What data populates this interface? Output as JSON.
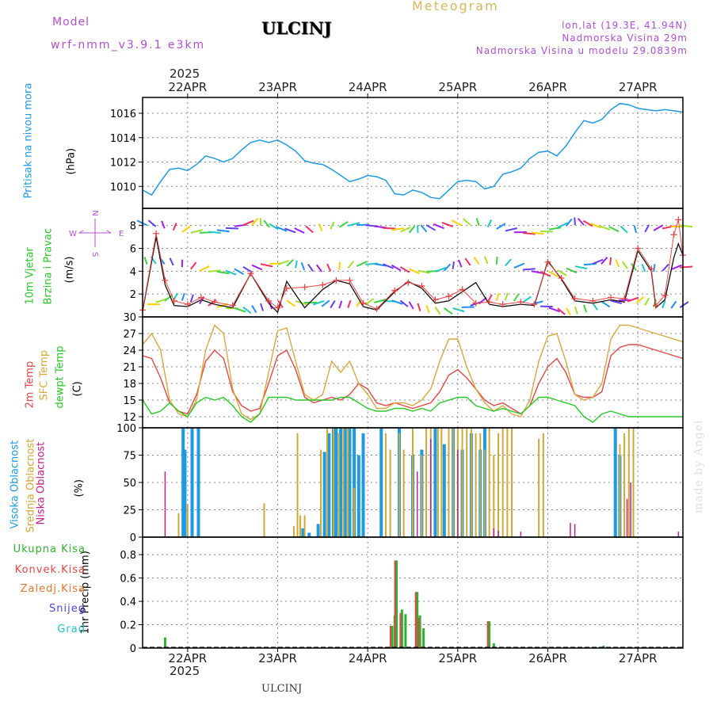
{
  "header": {
    "title": "ULCINJ",
    "subtitle": "Meteogram",
    "model_label": "Model",
    "model_name": "wrf-nmm_v3.9.1  e3km",
    "lonlat": "lon,lat (19.3E, 41.94N)",
    "altitude": "Nadmorska Visina 29m",
    "model_altitude": "Nadmorska Visina u modelu 29.0839m",
    "credit": "made by Angel",
    "footer_station": "ULCINJ",
    "year": "2025"
  },
  "colors": {
    "pressure": "#1e9be0",
    "temp2m": "#e04848",
    "sfc": "#d8a840",
    "dewpt": "#28c828",
    "high_cloud": "#1e9be0",
    "mid_cloud": "#d0a838",
    "low_cloud": "#c0208c",
    "total": "#30b030",
    "convective": "#e04848",
    "frozen": "#e07830",
    "snow": "#4848e0",
    "hail": "#20c0c0",
    "title": "#c8a848",
    "model": "#b050d0"
  },
  "chart_data": [
    {
      "type": "line",
      "name": "Pritisak na nivou mora",
      "ylabel_left": "Pritisak na nivou mora",
      "ylabel_unit": "(hPa)",
      "x_unit": "day index (0 = 22APR 00h)",
      "xlim": [
        -0.5,
        5.5
      ],
      "ylim": [
        1008.2,
        1017.3
      ],
      "yticks": [
        1010,
        1012,
        1014,
        1016
      ],
      "xtick_labels": [
        "22APR",
        "23APR",
        "24APR",
        "25APR",
        "26APR",
        "27APR"
      ],
      "x": [
        -0.5,
        -0.4,
        -0.3,
        -0.2,
        -0.1,
        0,
        0.1,
        0.2,
        0.3,
        0.4,
        0.5,
        0.6,
        0.7,
        0.8,
        0.9,
        1.0,
        1.1,
        1.2,
        1.3,
        1.4,
        1.5,
        1.6,
        1.7,
        1.8,
        1.9,
        2.0,
        2.1,
        2.2,
        2.3,
        2.4,
        2.5,
        2.6,
        2.7,
        2.8,
        2.9,
        3.0,
        3.1,
        3.2,
        3.3,
        3.4,
        3.5,
        3.6,
        3.7,
        3.8,
        3.9,
        4.0,
        4.1,
        4.2,
        4.3,
        4.4,
        4.5,
        4.6,
        4.7,
        4.8,
        4.9,
        5.0,
        5.1,
        5.2,
        5.3,
        5.4,
        5.5
      ],
      "values": [
        1009.7,
        1009.3,
        1010.4,
        1011.4,
        1011.5,
        1011.3,
        1011.8,
        1012.5,
        1012.3,
        1012.0,
        1012.3,
        1013.0,
        1013.6,
        1013.8,
        1013.6,
        1013.8,
        1013.4,
        1012.9,
        1012.1,
        1011.9,
        1011.8,
        1011.4,
        1010.9,
        1010.4,
        1010.6,
        1010.9,
        1010.8,
        1010.5,
        1009.4,
        1009.3,
        1009.7,
        1009.5,
        1009.1,
        1009.0,
        1009.7,
        1010.4,
        1010.5,
        1010.4,
        1009.8,
        1010.0,
        1011.0,
        1011.2,
        1011.5,
        1012.3,
        1012.8,
        1012.9,
        1012.5,
        1013.3,
        1014.4,
        1015.4,
        1015.2,
        1015.5,
        1016.3,
        1016.8,
        1016.7,
        1016.4,
        1016.3,
        1016.2,
        1016.3,
        1016.2,
        1016.1
      ]
    },
    {
      "type": "line",
      "name": "10m Vjetar Brzina i Pravac",
      "ylabel_left": "10m Vjetar",
      "ylabel_left2": "Brzina i Pravac",
      "ylabel_unit": "(m/s)",
      "compass": {
        "n": "N",
        "s": "S",
        "e": "E",
        "w": "W"
      },
      "xlim": [
        -0.5,
        5.5
      ],
      "ylim": [
        0,
        9.5
      ],
      "yticks": [
        2,
        4,
        6,
        8
      ],
      "ytick_labels": [
        "2",
        "4",
        "6",
        "8"
      ],
      "series": [
        {
          "name": "wind_speed",
          "values": [
            0.5,
            7.0,
            2.8,
            1.0,
            0.9,
            1.5,
            1.1,
            0.8,
            3.8,
            1.2,
            0.4,
            3.1,
            0.8,
            2.4,
            3.2,
            2.9,
            0.9,
            0.6,
            2.2,
            3.1,
            2.5,
            1.2,
            1.4,
            2.2,
            3.0,
            1.1,
            0.9,
            1.1,
            1.0,
            4.9,
            3.3,
            1.4,
            1.2,
            1.5,
            1.3,
            5.8,
            4.0,
            0.8,
            1.5,
            5.2,
            6.4,
            5.4
          ]
        },
        {
          "name": "wind_gust",
          "values": [
            0.6,
            7.3,
            3.2,
            1.4,
            1.1,
            1.7,
            1.3,
            1.0,
            3.8,
            1.4,
            0.8,
            2.5,
            2.6,
            2.8,
            3.2,
            3.2,
            1.2,
            0.7,
            2.3,
            3.0,
            2.7,
            1.5,
            1.8,
            2.4,
            1.2,
            1.3,
            1.1,
            1.3,
            1.1,
            4.8,
            3.4,
            1.6,
            1.4,
            1.7,
            1.6,
            6.0,
            4.2,
            1.0,
            1.9,
            7.2,
            8.5,
            5.4
          ]
        }
      ],
      "x": [
        -0.5,
        -0.35,
        -0.25,
        -0.15,
        0.0,
        0.15,
        0.3,
        0.5,
        0.7,
        0.9,
        1.0,
        1.1,
        1.3,
        1.5,
        1.65,
        1.8,
        1.95,
        2.1,
        2.3,
        2.45,
        2.6,
        2.75,
        2.9,
        3.05,
        3.2,
        3.35,
        3.5,
        3.7,
        3.85,
        4.0,
        4.15,
        4.3,
        4.5,
        4.7,
        4.85,
        5.0,
        5.15,
        5.2,
        5.3,
        5.4,
        5.45,
        5.5
      ]
    },
    {
      "type": "line",
      "name": "Temperature",
      "ylabel_left": "2m Temp",
      "ylabel_left2": "SFC Temp",
      "ylabel_left3": "dewpt Temp",
      "ylabel_unit": "(C)",
      "xlim": [
        -0.5,
        5.5
      ],
      "ylim": [
        10,
        30
      ],
      "yticks": [
        12,
        15,
        18,
        21,
        24,
        27,
        30
      ],
      "x": [
        -0.5,
        -0.4,
        -0.3,
        -0.2,
        -0.1,
        0,
        0.1,
        0.2,
        0.3,
        0.4,
        0.5,
        0.6,
        0.7,
        0.8,
        0.9,
        1.0,
        1.1,
        1.2,
        1.3,
        1.4,
        1.5,
        1.6,
        1.7,
        1.8,
        1.9,
        2.0,
        2.1,
        2.2,
        2.3,
        2.4,
        2.5,
        2.6,
        2.7,
        2.8,
        2.9,
        3.0,
        3.1,
        3.2,
        3.3,
        3.4,
        3.5,
        3.6,
        3.7,
        3.8,
        3.9,
        4.0,
        4.1,
        4.2,
        4.3,
        4.4,
        4.5,
        4.6,
        4.7,
        4.8,
        4.9,
        5.0,
        5.1,
        5.2,
        5.3,
        5.4,
        5.5
      ],
      "series": [
        {
          "name": "2m Temp",
          "values": [
            23.0,
            22.5,
            19.0,
            14.5,
            13.0,
            12.5,
            16.0,
            22.0,
            24.0,
            22.5,
            16.5,
            14.0,
            13.0,
            13.5,
            18.0,
            23.0,
            24.0,
            20.5,
            15.5,
            14.5,
            15.0,
            15.5,
            15.0,
            16.0,
            18.0,
            17.0,
            14.5,
            14.0,
            14.5,
            14.0,
            13.5,
            14.0,
            14.5,
            16.5,
            19.5,
            20.5,
            19.0,
            17.0,
            15.0,
            14.0,
            14.5,
            13.5,
            12.5,
            14.0,
            18.0,
            21.0,
            22.5,
            20.0,
            16.0,
            15.5,
            15.5,
            16.5,
            23.0,
            24.5,
            25.0,
            25.0,
            24.5,
            24.0,
            23.5,
            23.0,
            22.5
          ]
        },
        {
          "name": "SFC Temp",
          "values": [
            25.0,
            27.0,
            24.0,
            15.0,
            12.5,
            12.0,
            15.0,
            24.0,
            28.5,
            27.0,
            17.0,
            12.5,
            11.5,
            12.5,
            20.0,
            27.5,
            28.0,
            22.0,
            16.0,
            15.0,
            16.0,
            22.0,
            20.0,
            22.0,
            18.0,
            16.0,
            13.5,
            13.5,
            14.5,
            14.5,
            14.0,
            15.0,
            17.0,
            22.0,
            26.0,
            26.0,
            21.0,
            17.0,
            14.5,
            13.0,
            14.0,
            12.5,
            12.0,
            15.0,
            22.0,
            26.5,
            27.0,
            22.0,
            16.0,
            15.0,
            15.5,
            18.0,
            26.0,
            28.5,
            28.5,
            28.0,
            27.5,
            27.0,
            26.5,
            26.0,
            25.5
          ]
        },
        {
          "name": "dewpt Temp",
          "values": [
            15.0,
            12.5,
            13.0,
            14.5,
            13.0,
            12.0,
            14.5,
            15.5,
            15.0,
            15.5,
            14.0,
            12.0,
            11.0,
            12.5,
            15.5,
            15.5,
            15.5,
            15.0,
            15.0,
            15.0,
            15.0,
            15.0,
            15.5,
            15.5,
            14.5,
            13.5,
            13.0,
            13.0,
            13.5,
            13.5,
            13.0,
            13.5,
            13.0,
            14.5,
            15.0,
            15.5,
            15.5,
            14.0,
            13.5,
            13.0,
            13.5,
            13.0,
            12.5,
            14.0,
            15.5,
            15.5,
            15.0,
            14.5,
            14.0,
            12.0,
            11.0,
            12.5,
            13.0,
            12.5,
            12.0,
            12.0,
            12.0,
            12.0,
            12.0,
            12.0,
            12.0
          ]
        }
      ]
    },
    {
      "type": "bar",
      "name": "Oblacnost",
      "ylabel_left": "Visoka Oblacnost",
      "ylabel_left2": "Srednja Oblacnost",
      "ylabel_left3": "Niska Oblacnost",
      "ylabel_unit": "(%)",
      "xlim": [
        -0.5,
        5.5
      ],
      "ylim": [
        0,
        100
      ],
      "yticks": [
        0,
        25,
        50,
        75,
        100
      ],
      "series": [
        {
          "name": "Visoka Oblacnost",
          "x": [
            -0.05,
            -0.03,
            0.05,
            0.12,
            1.28,
            1.35,
            1.45,
            1.52,
            1.57,
            1.62,
            1.65,
            1.7,
            1.75,
            1.8,
            1.85,
            1.9,
            1.95,
            2.15,
            2.35,
            2.5,
            2.6,
            2.75,
            2.85,
            2.95,
            3.05,
            3.15,
            3.25,
            3.3,
            4.75,
            4.8
          ],
          "values": [
            100,
            80,
            100,
            100,
            8,
            4,
            12,
            78,
            95,
            100,
            100,
            100,
            100,
            100,
            100,
            75,
            95,
            100,
            100,
            75,
            80,
            100,
            85,
            100,
            80,
            95,
            80,
            100,
            100,
            75
          ]
        },
        {
          "name": "Srednja Oblacnost",
          "x": [
            -0.1,
            0.0,
            0.85,
            1.18,
            1.22,
            1.25,
            1.3,
            1.48,
            1.55,
            1.62,
            1.68,
            1.73,
            1.78,
            1.85,
            2.2,
            2.25,
            2.35,
            2.4,
            2.5,
            2.6,
            2.65,
            2.7,
            2.78,
            2.82,
            2.9,
            2.95,
            3.0,
            3.05,
            3.1,
            3.15,
            3.2,
            3.25,
            3.3,
            3.35,
            3.4,
            3.45,
            3.5,
            3.55,
            3.6,
            3.9,
            3.95,
            4.8,
            4.85,
            4.9,
            4.95
          ],
          "values": [
            22,
            30,
            31,
            10,
            95,
            20,
            20,
            80,
            100,
            100,
            95,
            100,
            100,
            45,
            95,
            80,
            95,
            80,
            100,
            75,
            100,
            100,
            100,
            100,
            100,
            100,
            100,
            100,
            100,
            100,
            95,
            95,
            80,
            100,
            75,
            95,
            100,
            100,
            100,
            90,
            95,
            85,
            95,
            100,
            100
          ]
        },
        {
          "name": "Niska Oblacnost",
          "x": [
            -0.25,
            2.55,
            2.7,
            3.0,
            3.4,
            3.45,
            3.7,
            4.25,
            4.3,
            4.88,
            4.92,
            5.45
          ],
          "values": [
            60,
            60,
            90,
            80,
            8,
            6,
            5,
            13,
            12,
            35,
            50,
            5
          ]
        }
      ]
    },
    {
      "type": "bar",
      "name": "1hr Precip",
      "ylabel_unit": "1hr Precip (mm)",
      "legend": [
        "Ukupna Kisa",
        "Konvek.Kisa",
        "Zaledj.Kisa",
        "Snijeg",
        "Grad"
      ],
      "xlim": [
        -0.5,
        5.5
      ],
      "ylim": [
        0,
        0.95
      ],
      "yticks": [
        0,
        0.2,
        0.4,
        0.6,
        0.8
      ],
      "xtick_labels": [
        "22APR",
        "23APR",
        "24APR",
        "25APR",
        "26APR",
        "27APR"
      ],
      "series": [
        {
          "name": "Ukupna Kisa",
          "x": [
            -0.25,
            2.27,
            2.3,
            2.32,
            2.38,
            2.42,
            2.55,
            2.58,
            2.62,
            3.35,
            3.4,
            4.62
          ],
          "values": [
            0.09,
            0.19,
            0.28,
            0.75,
            0.33,
            0.29,
            0.48,
            0.28,
            0.17,
            0.23,
            0.04,
            0.02
          ]
        },
        {
          "name": "Konvek.Kisa",
          "x": [
            2.27,
            2.32,
            2.38,
            2.55,
            2.58,
            3.35
          ],
          "values": [
            0.19,
            0.75,
            0.3,
            0.48,
            0.26,
            0.23
          ]
        },
        {
          "name": "Zaledj.Kisa",
          "x": [],
          "values": []
        },
        {
          "name": "Snijeg",
          "x": [],
          "values": []
        },
        {
          "name": "Grad",
          "x": [],
          "values": []
        }
      ]
    }
  ]
}
